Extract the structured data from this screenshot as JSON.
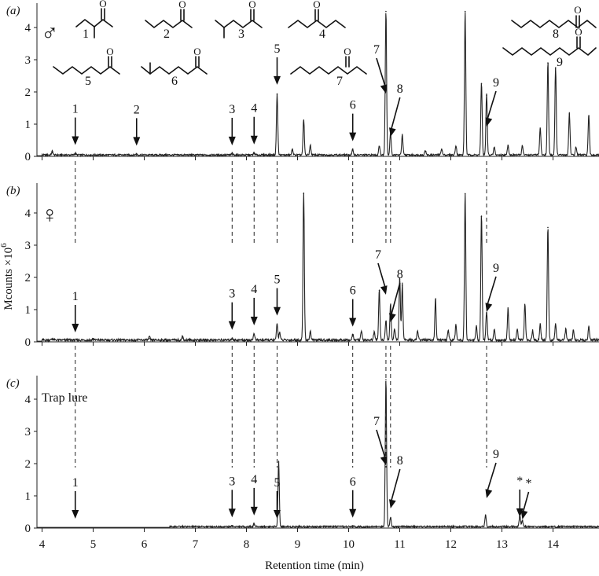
{
  "chart_data": {
    "type": "line",
    "xlabel": "Retention time (min)",
    "ylabel": "Mcounts ×10",
    "ylabel_sup": "6",
    "xlim": [
      3.9,
      14.9
    ],
    "x_ticks": [
      4,
      5,
      6,
      7,
      8,
      9,
      10,
      11,
      12,
      13,
      14
    ],
    "x_tick_labels": [
      "4",
      "5",
      "6",
      "7",
      "8",
      "9",
      "10",
      "11",
      "12",
      "13",
      "14"
    ],
    "ylim": [
      0,
      4.5
    ],
    "y_ticks": [
      0,
      1,
      2,
      3,
      4
    ],
    "y_tick_labels": [
      "0",
      "1",
      "2",
      "3",
      "4"
    ],
    "panels": [
      {
        "label": "(a)",
        "sex_symbol": "♂",
        "note": "",
        "peaks": [
          {
            "x": 4.2,
            "y": 0.12
          },
          {
            "x": 4.65,
            "y": 0.06
          },
          {
            "x": 5.85,
            "y": 0.04
          },
          {
            "x": 7.72,
            "y": 0.05
          },
          {
            "x": 8.15,
            "y": 0.08
          },
          {
            "x": 8.6,
            "y": 1.93
          },
          {
            "x": 8.9,
            "y": 0.18
          },
          {
            "x": 9.12,
            "y": 1.1
          },
          {
            "x": 9.25,
            "y": 0.3
          },
          {
            "x": 10.08,
            "y": 0.18
          },
          {
            "x": 10.6,
            "y": 0.3
          },
          {
            "x": 10.73,
            "y": 4.5
          },
          {
            "x": 10.82,
            "y": 0.7
          },
          {
            "x": 11.05,
            "y": 0.63
          },
          {
            "x": 11.5,
            "y": 0.15
          },
          {
            "x": 11.82,
            "y": 0.2
          },
          {
            "x": 12.1,
            "y": 0.3
          },
          {
            "x": 12.28,
            "y": 4.5
          },
          {
            "x": 12.6,
            "y": 2.26
          },
          {
            "x": 12.7,
            "y": 1.9
          },
          {
            "x": 12.85,
            "y": 0.25
          },
          {
            "x": 13.12,
            "y": 0.32
          },
          {
            "x": 13.4,
            "y": 0.3
          },
          {
            "x": 13.75,
            "y": 0.85
          },
          {
            "x": 13.9,
            "y": 2.9
          },
          {
            "x": 14.05,
            "y": 2.75
          },
          {
            "x": 14.32,
            "y": 1.32
          },
          {
            "x": 14.45,
            "y": 0.25
          },
          {
            "x": 14.7,
            "y": 1.25
          }
        ],
        "markers": [
          {
            "label": "1",
            "x": 4.65
          },
          {
            "label": "2",
            "x": 5.85
          },
          {
            "label": "3",
            "x": 7.72
          },
          {
            "label": "4",
            "x": 8.15
          },
          {
            "label": "5",
            "x": 8.6
          },
          {
            "label": "6",
            "x": 10.08
          },
          {
            "label": "7",
            "x": 10.73
          },
          {
            "label": "8",
            "x": 10.82
          },
          {
            "label": "9",
            "x": 12.7
          }
        ]
      },
      {
        "label": "(b)",
        "sex_symbol": "♀",
        "note": "",
        "peaks": [
          {
            "x": 4.2,
            "y": 0.06
          },
          {
            "x": 5.0,
            "y": 0.05
          },
          {
            "x": 6.1,
            "y": 0.1
          },
          {
            "x": 6.75,
            "y": 0.12
          },
          {
            "x": 7.72,
            "y": 0.08
          },
          {
            "x": 8.15,
            "y": 0.22
          },
          {
            "x": 8.6,
            "y": 0.52
          },
          {
            "x": 8.65,
            "y": 0.25
          },
          {
            "x": 9.12,
            "y": 4.6
          },
          {
            "x": 9.25,
            "y": 0.28
          },
          {
            "x": 10.08,
            "y": 0.18
          },
          {
            "x": 10.25,
            "y": 0.3
          },
          {
            "x": 10.5,
            "y": 0.25
          },
          {
            "x": 10.6,
            "y": 1.6
          },
          {
            "x": 10.73,
            "y": 0.6
          },
          {
            "x": 10.82,
            "y": 1.12
          },
          {
            "x": 10.9,
            "y": 0.35
          },
          {
            "x": 11.0,
            "y": 1.95
          },
          {
            "x": 11.05,
            "y": 1.75
          },
          {
            "x": 11.35,
            "y": 0.3
          },
          {
            "x": 11.7,
            "y": 1.3
          },
          {
            "x": 11.95,
            "y": 0.3
          },
          {
            "x": 12.1,
            "y": 0.48
          },
          {
            "x": 12.28,
            "y": 4.6
          },
          {
            "x": 12.5,
            "y": 0.45
          },
          {
            "x": 12.6,
            "y": 3.9
          },
          {
            "x": 12.7,
            "y": 0.9
          },
          {
            "x": 12.85,
            "y": 0.35
          },
          {
            "x": 13.12,
            "y": 1.0
          },
          {
            "x": 13.3,
            "y": 0.35
          },
          {
            "x": 13.45,
            "y": 1.12
          },
          {
            "x": 13.6,
            "y": 0.3
          },
          {
            "x": 13.75,
            "y": 0.5
          },
          {
            "x": 13.9,
            "y": 3.55
          },
          {
            "x": 14.05,
            "y": 0.5
          },
          {
            "x": 14.25,
            "y": 0.35
          },
          {
            "x": 14.4,
            "y": 0.32
          },
          {
            "x": 14.7,
            "y": 0.45
          }
        ],
        "markers": [
          {
            "label": "1",
            "x": 4.65
          },
          {
            "label": "3",
            "x": 7.72
          },
          {
            "label": "4",
            "x": 8.15
          },
          {
            "label": "5",
            "x": 8.6
          },
          {
            "label": "6",
            "x": 10.08
          },
          {
            "label": "7",
            "x": 10.73
          },
          {
            "label": "8",
            "x": 10.82
          },
          {
            "label": "9",
            "x": 12.7
          }
        ]
      },
      {
        "label": "(c)",
        "sex_symbol": "",
        "note": "Trap lure",
        "peaks": [
          {
            "x": 7.72,
            "y": 0.04
          },
          {
            "x": 8.15,
            "y": 0.1
          },
          {
            "x": 8.63,
            "y": 2.05
          },
          {
            "x": 10.08,
            "y": 0.03
          },
          {
            "x": 10.73,
            "y": 4.6
          },
          {
            "x": 10.82,
            "y": 0.3
          },
          {
            "x": 12.68,
            "y": 0.38
          },
          {
            "x": 13.35,
            "y": 0.35
          },
          {
            "x": 13.4,
            "y": 0.2
          }
        ],
        "markers": [
          {
            "label": "1",
            "x": 4.65
          },
          {
            "label": "3",
            "x": 7.72
          },
          {
            "label": "4",
            "x": 8.15
          },
          {
            "label": "5",
            "x": 8.6
          },
          {
            "label": "6",
            "x": 10.08
          },
          {
            "label": "7",
            "x": 10.73
          },
          {
            "label": "8",
            "x": 10.82
          },
          {
            "label": "9",
            "x": 12.7
          },
          {
            "label": "*",
            "x": 13.35
          },
          {
            "label": "*",
            "x": 13.4
          }
        ]
      }
    ],
    "dashed_lines_x": [
      4.65,
      7.72,
      8.15,
      8.6,
      10.08,
      10.73,
      10.82,
      12.7
    ],
    "compound_labels": [
      "1",
      "2",
      "3",
      "4",
      "5",
      "6",
      "7",
      "8",
      "9"
    ]
  }
}
